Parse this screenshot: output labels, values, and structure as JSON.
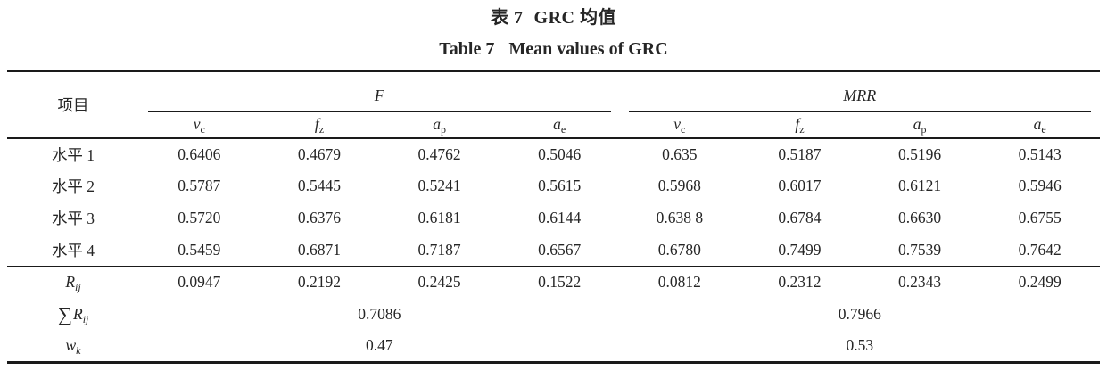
{
  "title": {
    "cn_label": "表 7",
    "cn_text": "GRC 均值",
    "en_label": "Table 7",
    "en_text": "Mean values of GRC"
  },
  "table": {
    "item_header": "项目",
    "groups": [
      {
        "label": "F",
        "cols": [
          {
            "base": "v",
            "sub": "c"
          },
          {
            "base": "f",
            "sub": "z"
          },
          {
            "base": "a",
            "sub": "p"
          },
          {
            "base": "a",
            "sub": "e"
          }
        ]
      },
      {
        "label": "MRR",
        "cols": [
          {
            "base": "v",
            "sub": "c"
          },
          {
            "base": "f",
            "sub": "z"
          },
          {
            "base": "a",
            "sub": "p"
          },
          {
            "base": "a",
            "sub": "e"
          }
        ]
      }
    ],
    "level_rows": [
      {
        "label": "水平 1",
        "values": [
          "0.6406",
          "0.4679",
          "0.4762",
          "0.5046",
          "0.635",
          "0.5187",
          "0.5196",
          "0.5143"
        ]
      },
      {
        "label": "水平 2",
        "values": [
          "0.5787",
          "0.5445",
          "0.5241",
          "0.5615",
          "0.5968",
          "0.6017",
          "0.6121",
          "0.5946"
        ]
      },
      {
        "label": "水平 3",
        "values": [
          "0.5720",
          "0.6376",
          "0.6181",
          "0.6144",
          "0.638 8",
          "0.6784",
          "0.6630",
          "0.6755"
        ]
      },
      {
        "label": "水平 4",
        "values": [
          "0.5459",
          "0.6871",
          "0.7187",
          "0.6567",
          "0.6780",
          "0.7499",
          "0.7539",
          "0.7642"
        ]
      }
    ],
    "range_row": {
      "label_base": "R",
      "label_sub": "ij",
      "values": [
        "0.0947",
        "0.2192",
        "0.2425",
        "0.1522",
        "0.0812",
        "0.2312",
        "0.2343",
        "0.2499"
      ]
    },
    "sum_row": {
      "label_prefix": "∑",
      "label_base": "R",
      "label_sub": "ij",
      "f_value": "0.7086",
      "mrr_value": "0.7966"
    },
    "weight_row": {
      "label_base": "w",
      "label_sub": "k",
      "f_value": "0.47",
      "mrr_value": "0.53"
    }
  },
  "colors": {
    "background": "#ffffff",
    "text": "#262626",
    "rule": "#1a1a1a"
  }
}
